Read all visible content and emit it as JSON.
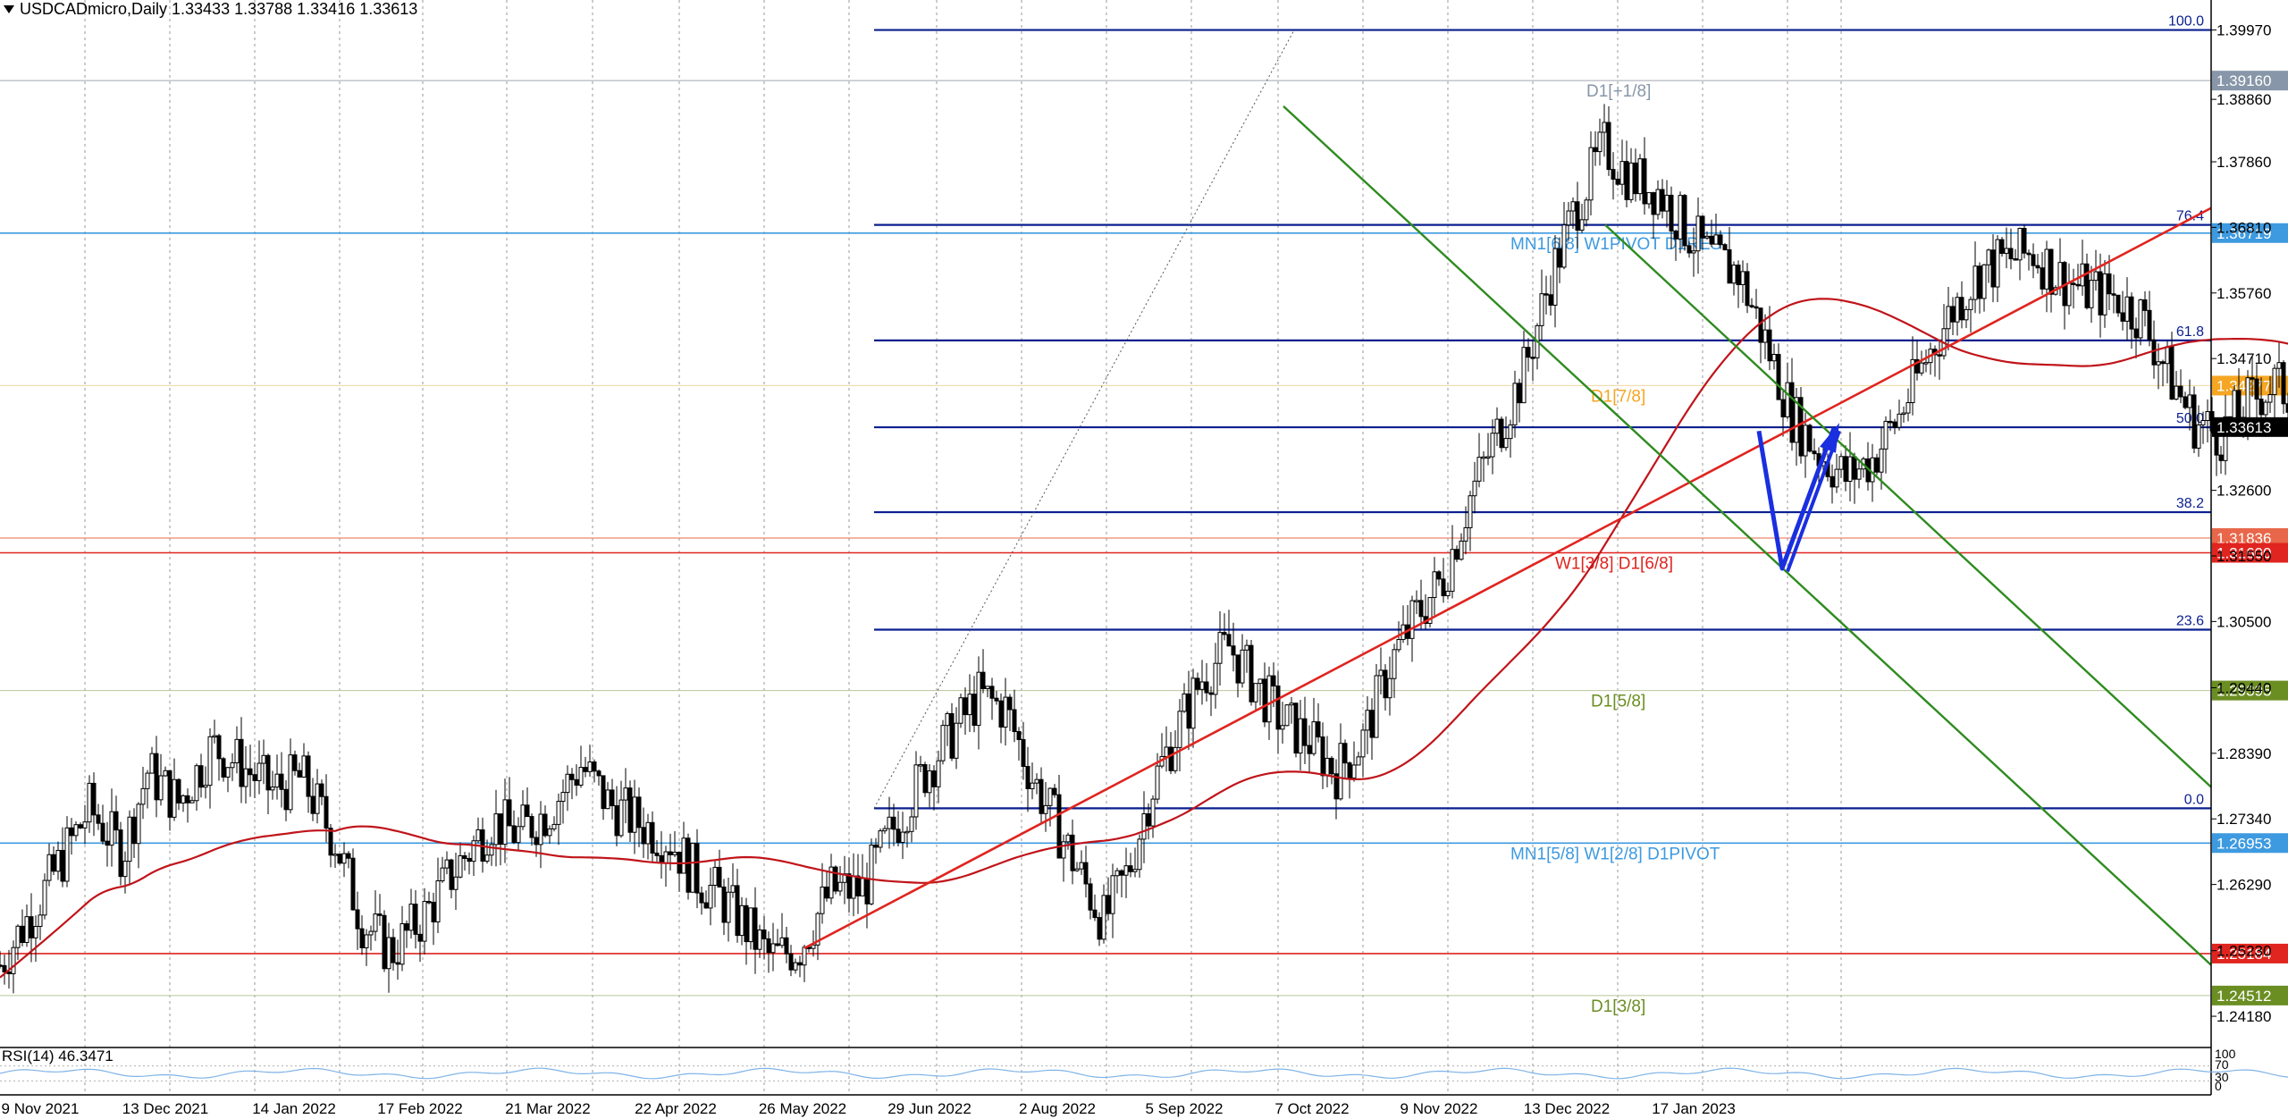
{
  "header": {
    "symbol_line": "USDCADmicro,Daily  1.33433 1.33788 1.33416 1.33613"
  },
  "rsi": {
    "label": "RSI(14) 46.3471",
    "scale_labels": [
      "100",
      "70",
      "30",
      "0"
    ]
  },
  "chart_data": {
    "type": "candlestick",
    "title": "USDCADmicro,Daily",
    "ohlc_last": {
      "open": 1.33433,
      "high": 1.33788,
      "low": 1.33416,
      "close": 1.33613
    },
    "ylim": [
      1.2368,
      1.4025
    ],
    "y_tick_labels": [
      "1.39970",
      "1.38860",
      "1.37860",
      "1.36810",
      "1.35760",
      "1.34710",
      "1.33660",
      "1.32600",
      "1.31550",
      "1.30500",
      "1.29440",
      "1.28390",
      "1.27340",
      "1.26290",
      "1.25230",
      "1.24180"
    ],
    "x_tick_labels": [
      "9 Nov 2021",
      "13 Dec 2021",
      "14 Jan 2022",
      "17 Feb 2022",
      "21 Mar 2022",
      "22 Apr 2022",
      "26 May 2022",
      "29 Jun 2022",
      "2 Aug 2022",
      "5 Sep 2022",
      "7 Oct 2022",
      "9 Nov 2022",
      "13 Dec 2022",
      "17 Jan 2023"
    ],
    "close_path": [
      [
        0,
        1.25
      ],
      [
        20,
        1.262
      ],
      [
        40,
        1.275
      ],
      [
        55,
        1.268
      ],
      [
        66,
        1.281
      ],
      [
        80,
        1.276
      ],
      [
        95,
        1.285
      ],
      [
        108,
        1.282
      ],
      [
        122,
        1.278
      ],
      [
        135,
        1.28
      ],
      [
        150,
        1.27
      ],
      [
        162,
        1.257
      ],
      [
        175,
        1.252
      ],
      [
        190,
        1.258
      ],
      [
        205,
        1.266
      ],
      [
        220,
        1.273
      ],
      [
        232,
        1.271
      ],
      [
        246,
        1.275
      ],
      [
        260,
        1.282
      ],
      [
        272,
        1.276
      ],
      [
        285,
        1.273
      ],
      [
        300,
        1.27
      ],
      [
        312,
        1.264
      ],
      [
        322,
        1.261
      ],
      [
        334,
        1.256
      ],
      [
        345,
        1.251
      ],
      [
        358,
        1.253
      ],
      [
        372,
        1.262
      ],
      [
        386,
        1.262
      ],
      [
        400,
        1.272
      ],
      [
        414,
        1.281
      ],
      [
        426,
        1.287
      ],
      [
        438,
        1.293
      ],
      [
        450,
        1.291
      ],
      [
        462,
        1.28
      ],
      [
        472,
        1.273
      ],
      [
        484,
        1.264
      ],
      [
        494,
        1.257
      ],
      [
        505,
        1.265
      ],
      [
        515,
        1.278
      ],
      [
        526,
        1.287
      ],
      [
        538,
        1.296
      ],
      [
        550,
        1.301
      ],
      [
        562,
        1.295
      ],
      [
        574,
        1.289
      ],
      [
        586,
        1.286
      ],
      [
        598,
        1.281
      ],
      [
        610,
        1.286
      ],
      [
        622,
        1.298
      ],
      [
        634,
        1.306
      ],
      [
        646,
        1.312
      ],
      [
        658,
        1.325
      ],
      [
        670,
        1.335
      ],
      [
        682,
        1.345
      ],
      [
        694,
        1.36
      ],
      [
        706,
        1.372
      ],
      [
        718,
        1.381
      ],
      [
        730,
        1.376
      ],
      [
        742,
        1.374
      ],
      [
        754,
        1.368
      ],
      [
        766,
        1.363
      ],
      [
        778,
        1.361
      ],
      [
        790,
        1.35
      ],
      [
        802,
        1.338
      ],
      [
        814,
        1.332
      ],
      [
        826,
        1.328
      ],
      [
        838,
        1.331
      ],
      [
        850,
        1.338
      ],
      [
        862,
        1.347
      ],
      [
        874,
        1.355
      ],
      [
        886,
        1.361
      ],
      [
        898,
        1.363
      ],
      [
        910,
        1.364
      ],
      [
        922,
        1.36
      ],
      [
        934,
        1.358
      ],
      [
        946,
        1.357
      ],
      [
        958,
        1.354
      ],
      [
        970,
        1.345
      ],
      [
        982,
        1.337
      ],
      [
        994,
        1.335
      ],
      [
        1006,
        1.34
      ],
      [
        1018,
        1.343
      ],
      [
        1030,
        1.34
      ],
      [
        1042,
        1.334
      ],
      [
        1054,
        1.331
      ],
      [
        1066,
        1.333
      ],
      [
        1078,
        1.338
      ],
      [
        1090,
        1.342
      ],
      [
        1096,
        1.338
      ],
      [
        1102,
        1.3361
      ]
    ],
    "fibonacci": [
      {
        "label": "100.0",
        "price": 1.3997
      },
      {
        "label": "76.4",
        "price": 1.3685
      },
      {
        "label": "61.8",
        "price": 1.35
      },
      {
        "label": "50.0",
        "price": 1.3361
      },
      {
        "label": "38.2",
        "price": 1.3225
      },
      {
        "label": "23.6",
        "price": 1.3037
      },
      {
        "label": "0.0",
        "price": 1.2751
      }
    ],
    "price_levels": [
      {
        "name": "D1[+1/8]",
        "tag": "1.39160",
        "price": 1.3916,
        "color": "#8796a8"
      },
      {
        "name": "MN1[6/8] W1PIVOT D1RES",
        "tag": "1.36719",
        "price": 1.36719,
        "color": "#3d9ae0"
      },
      {
        "name": "D1[7/8]",
        "tag": "1.34277",
        "price": 1.34277,
        "color": "#f5a623"
      },
      {
        "name": "",
        "tag": "1.31836",
        "price": 1.31836,
        "color": "#e8674a"
      },
      {
        "name": "W1[3/8] D1[6/8]",
        "tag": "1.31600",
        "price": 1.316,
        "color": "#e0241f"
      },
      {
        "name": "D1[5/8]",
        "tag": "1.29395",
        "price": 1.29395,
        "color": "#6b8e23"
      },
      {
        "name": "MN1[5/8] W1[2/8] D1PIVOT",
        "tag": "1.26953",
        "price": 1.26953,
        "color": "#3d9ae0"
      },
      {
        "name": "",
        "tag": "1.25184",
        "price": 1.25184,
        "color": "#e0241f"
      },
      {
        "name": "D1[3/8]",
        "tag": "1.24512",
        "price": 1.24512,
        "color": "#6b8e23"
      }
    ],
    "current_price": {
      "tag": "1.33613",
      "price": 1.33613
    },
    "colors": {
      "fib": "#0a1f8f",
      "trend": "#e0241f",
      "channel": "#2e8b1f",
      "arrow": "#1a2fe0",
      "ma": "#c0141a"
    }
  }
}
